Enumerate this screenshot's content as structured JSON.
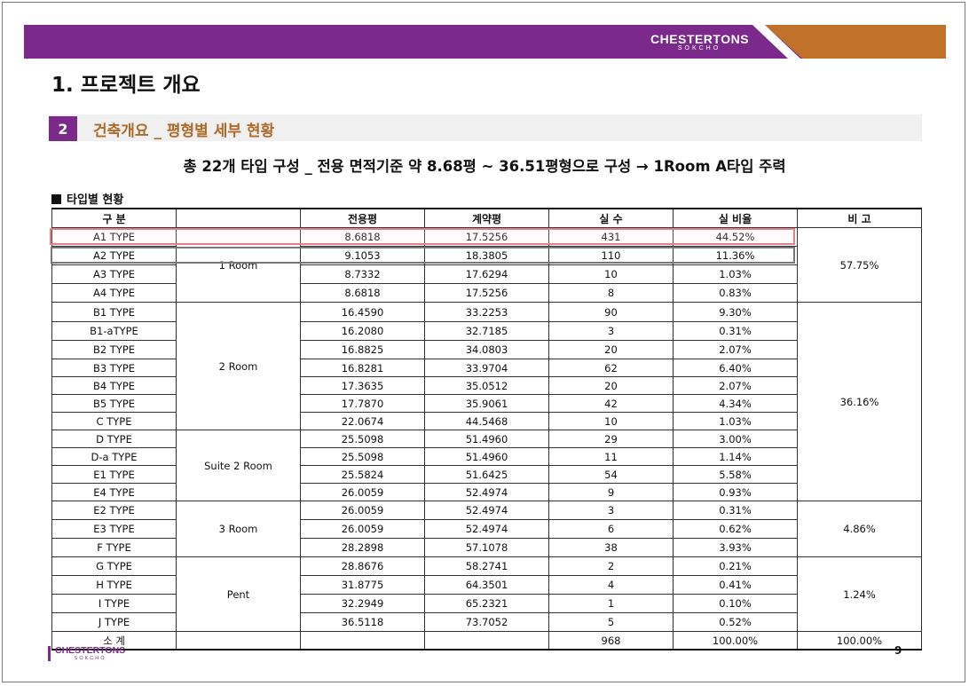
{
  "header": {
    "brand": "CHESTERTONS",
    "brand_sub": "SOKCHO",
    "colors": {
      "purple": "#7b2a8c",
      "orange": "#c0722b"
    }
  },
  "page_title": "1. 프로젝트 개요",
  "section": {
    "number": "2",
    "title": "건축개요 _ 평형별 세부 현황"
  },
  "headline": "총 22개 타입 구성 _ 전용 면적기준 약 8.68평 ~ 36.51평형으로 구성 → 1Room A타입 주력",
  "table_caption": "타입별 현황",
  "table": {
    "headers": [
      "구 분",
      "",
      "전용평",
      "계약평",
      "실 수",
      "실 비율",
      "비 고"
    ],
    "groups": [
      {
        "name": "1 Room",
        "note": "57.75%",
        "rows": [
          [
            "A1 TYPE",
            "8.6818",
            "17.5256",
            "431",
            "44.52%"
          ],
          [
            "A2 TYPE",
            "9.1053",
            "18.3805",
            "110",
            "11.36%"
          ],
          [
            "A3 TYPE",
            "8.7332",
            "17.6294",
            "10",
            "1.03%"
          ],
          [
            "A4 TYPE",
            "8.6818",
            "17.5256",
            "8",
            "0.83%"
          ]
        ]
      },
      {
        "name": "2 Room",
        "note": "36.16%",
        "rows": [
          [
            "B1 TYPE",
            "16.4590",
            "33.2253",
            "90",
            "9.30%"
          ],
          [
            "B1-aTYPE",
            "16.2080",
            "32.7185",
            "3",
            "0.31%"
          ],
          [
            "B2 TYPE",
            "16.8825",
            "34.0803",
            "20",
            "2.07%"
          ],
          [
            "B3 TYPE",
            "16.8281",
            "33.9704",
            "62",
            "6.40%"
          ],
          [
            "B4 TYPE",
            "17.3635",
            "35.0512",
            "20",
            "2.07%"
          ],
          [
            "B5 TYPE",
            "17.7870",
            "35.9061",
            "42",
            "4.34%"
          ],
          [
            "C TYPE",
            "22.0674",
            "44.5468",
            "10",
            "1.03%"
          ]
        ]
      },
      {
        "name": "Suite 2 Room",
        "note": "",
        "rows": [
          [
            "D TYPE",
            "25.5098",
            "51.4960",
            "29",
            "3.00%"
          ],
          [
            "D-a TYPE",
            "25.5098",
            "51.4960",
            "11",
            "1.14%"
          ],
          [
            "E1 TYPE",
            "25.5824",
            "51.6425",
            "54",
            "5.58%"
          ],
          [
            "E4 TYPE",
            "26.0059",
            "52.4974",
            "9",
            "0.93%"
          ]
        ]
      },
      {
        "name": "3 Room",
        "note": "4.86%",
        "rows": [
          [
            "E2 TYPE",
            "26.0059",
            "52.4974",
            "3",
            "0.31%"
          ],
          [
            "E3 TYPE",
            "26.0059",
            "52.4974",
            "6",
            "0.62%"
          ],
          [
            "F TYPE",
            "28.2898",
            "57.1078",
            "38",
            "3.93%"
          ]
        ]
      },
      {
        "name": "Pent",
        "note": "1.24%",
        "rows": [
          [
            "G TYPE",
            "28.8676",
            "58.2741",
            "2",
            "0.21%"
          ],
          [
            "H TYPE",
            "31.8775",
            "64.3501",
            "4",
            "0.41%"
          ],
          [
            "I TYPE",
            "32.2949",
            "65.2321",
            "1",
            "0.10%"
          ],
          [
            "J TYPE",
            "36.5118",
            "73.7052",
            "5",
            "0.52%"
          ]
        ]
      }
    ],
    "total": {
      "label": "소 계",
      "count": "968",
      "ratio": "100.00%",
      "note": "100.00%"
    }
  },
  "footer": {
    "brand": "CHESTERTONS",
    "brand_sub": "SOKCHO",
    "page_number": "9"
  }
}
